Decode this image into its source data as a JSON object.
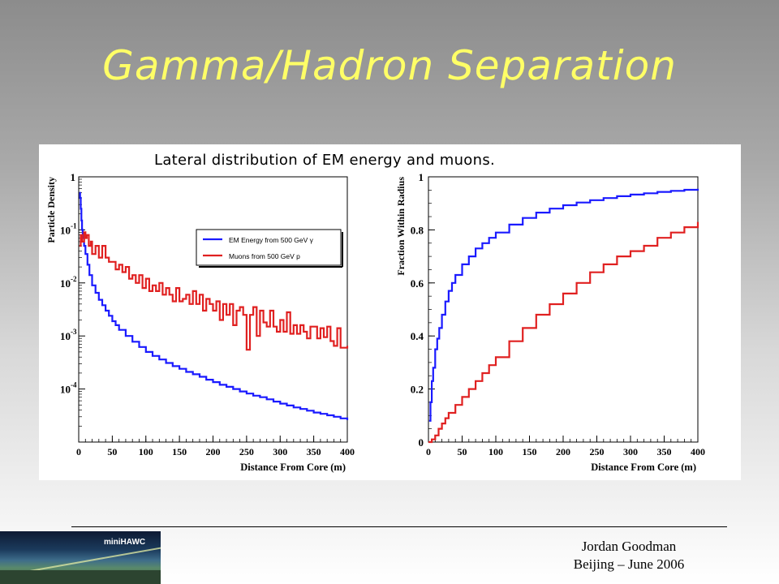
{
  "slide": {
    "title": "Gamma/Hadron Separation",
    "caption": "Lateral distribution of EM energy and muons.",
    "footer_author": "Jordan Goodman",
    "footer_place": "Beijing – June 2006",
    "logo_text": "miniHAWC"
  },
  "colors": {
    "title": "#ffff66",
    "em": "#1a1aff",
    "muon": "#e02020"
  },
  "chart_data": [
    {
      "type": "line",
      "step": true,
      "xlabel": "Distance From Core (m)",
      "ylabel": "Particle Density",
      "xlim": [
        0,
        400
      ],
      "yscale": "log",
      "ylim": [
        1e-05,
        1
      ],
      "xticks": [
        0,
        50,
        100,
        150,
        200,
        250,
        300,
        350,
        400
      ],
      "yticks": [
        {
          "v": 1,
          "base": "1",
          "exp": ""
        },
        {
          "v": 0.1,
          "base": "10",
          "exp": "-1"
        },
        {
          "v": 0.01,
          "base": "10",
          "exp": "-2"
        },
        {
          "v": 0.001,
          "base": "10",
          "exp": "-3"
        },
        {
          "v": 0.0001,
          "base": "10",
          "exp": "-4"
        }
      ],
      "legend": {
        "position": "top-right"
      },
      "series": [
        {
          "name": "EM Energy from 500 GeV γ",
          "color": "#1a1aff",
          "x": [
            1,
            2,
            3,
            4,
            5,
            6,
            8,
            10,
            13,
            16,
            20,
            25,
            30,
            35,
            40,
            45,
            50,
            55,
            60,
            70,
            80,
            90,
            100,
            110,
            120,
            130,
            140,
            150,
            160,
            170,
            180,
            190,
            200,
            210,
            220,
            230,
            240,
            250,
            260,
            270,
            280,
            290,
            300,
            310,
            320,
            330,
            340,
            350,
            360,
            370,
            380,
            390,
            400
          ],
          "y": [
            0.5,
            0.4,
            0.25,
            0.15,
            0.1,
            0.07,
            0.05,
            0.035,
            0.022,
            0.014,
            0.009,
            0.0065,
            0.0048,
            0.0038,
            0.003,
            0.0024,
            0.0019,
            0.0016,
            0.0013,
            0.001,
            0.00078,
            0.00062,
            0.0005,
            0.00042,
            0.00036,
            0.00031,
            0.00027,
            0.00024,
            0.00021,
            0.00019,
            0.00017,
            0.00015,
            0.000135,
            0.00012,
            0.00011,
            0.0001,
            9e-05,
            8.2e-05,
            7.5e-05,
            7e-05,
            6.4e-05,
            5.8e-05,
            5.3e-05,
            4.9e-05,
            4.5e-05,
            4.2e-05,
            3.9e-05,
            3.6e-05,
            3.4e-05,
            3.2e-05,
            3e-05,
            2.8e-05,
            2.6e-05
          ]
        },
        {
          "name": "Muons from 500 GeV p",
          "color": "#e02020",
          "x": [
            1,
            3,
            5,
            8,
            10,
            12,
            15,
            18,
            20,
            25,
            30,
            35,
            40,
            45,
            50,
            55,
            60,
            65,
            70,
            75,
            80,
            85,
            90,
            95,
            100,
            105,
            110,
            115,
            120,
            125,
            130,
            135,
            140,
            145,
            150,
            155,
            160,
            165,
            170,
            175,
            180,
            185,
            190,
            195,
            200,
            205,
            210,
            215,
            220,
            225,
            230,
            235,
            240,
            245,
            250,
            255,
            260,
            265,
            270,
            275,
            280,
            285,
            290,
            295,
            300,
            305,
            310,
            315,
            320,
            325,
            330,
            335,
            340,
            345,
            350,
            355,
            360,
            365,
            370,
            375,
            380,
            385,
            390,
            395,
            400
          ],
          "y": [
            0.05,
            0.08,
            0.06,
            0.09,
            0.07,
            0.08,
            0.05,
            0.06,
            0.035,
            0.05,
            0.03,
            0.05,
            0.03,
            0.025,
            0.025,
            0.018,
            0.022,
            0.016,
            0.02,
            0.012,
            0.014,
            0.01,
            0.014,
            0.008,
            0.012,
            0.007,
            0.009,
            0.007,
            0.01,
            0.006,
            0.008,
            0.006,
            0.0045,
            0.008,
            0.0045,
            0.005,
            0.006,
            0.004,
            0.007,
            0.004,
            0.006,
            0.003,
            0.005,
            0.004,
            0.003,
            0.0045,
            0.002,
            0.004,
            0.0025,
            0.004,
            0.0016,
            0.003,
            0.0035,
            0.0025,
            0.00055,
            0.0025,
            0.0035,
            0.001,
            0.003,
            0.0018,
            0.0015,
            0.003,
            0.0015,
            0.0012,
            0.002,
            0.0012,
            0.0028,
            0.0011,
            0.0016,
            0.0011,
            0.0016,
            0.0012,
            0.0009,
            0.0015,
            0.0015,
            0.0009,
            0.0014,
            0.00095,
            0.0015,
            0.0008,
            0.00065,
            0.0014,
            0.0006,
            0.0006,
            0.00065
          ]
        }
      ]
    },
    {
      "type": "line",
      "step": true,
      "xlabel": "Distance From Core (m)",
      "ylabel": "Fraction Within Radius",
      "xlim": [
        0,
        400
      ],
      "ylim": [
        0,
        1
      ],
      "xticks": [
        0,
        50,
        100,
        150,
        200,
        250,
        300,
        350,
        400
      ],
      "yticks": [
        0,
        0.2,
        0.4,
        0.6,
        0.8,
        1
      ],
      "series": [
        {
          "color": "#1a1aff",
          "x": [
            1,
            3,
            5,
            7,
            10,
            13,
            16,
            20,
            25,
            30,
            35,
            40,
            50,
            60,
            70,
            80,
            90,
            100,
            120,
            140,
            160,
            180,
            200,
            220,
            240,
            260,
            280,
            300,
            320,
            340,
            360,
            380,
            400
          ],
          "y": [
            0.08,
            0.15,
            0.23,
            0.28,
            0.35,
            0.39,
            0.43,
            0.48,
            0.53,
            0.57,
            0.6,
            0.63,
            0.67,
            0.7,
            0.73,
            0.75,
            0.77,
            0.79,
            0.82,
            0.845,
            0.865,
            0.88,
            0.893,
            0.903,
            0.912,
            0.92,
            0.927,
            0.933,
            0.938,
            0.943,
            0.947,
            0.951,
            0.955
          ]
        },
        {
          "color": "#e02020",
          "x": [
            0,
            5,
            10,
            15,
            20,
            25,
            30,
            40,
            50,
            60,
            70,
            80,
            90,
            100,
            120,
            140,
            160,
            180,
            200,
            220,
            240,
            260,
            280,
            300,
            320,
            340,
            360,
            380,
            400
          ],
          "y": [
            0,
            0.01,
            0.025,
            0.05,
            0.07,
            0.09,
            0.11,
            0.14,
            0.17,
            0.2,
            0.23,
            0.26,
            0.29,
            0.32,
            0.38,
            0.43,
            0.48,
            0.52,
            0.56,
            0.6,
            0.64,
            0.67,
            0.7,
            0.72,
            0.74,
            0.77,
            0.79,
            0.81,
            0.83
          ]
        }
      ]
    }
  ]
}
